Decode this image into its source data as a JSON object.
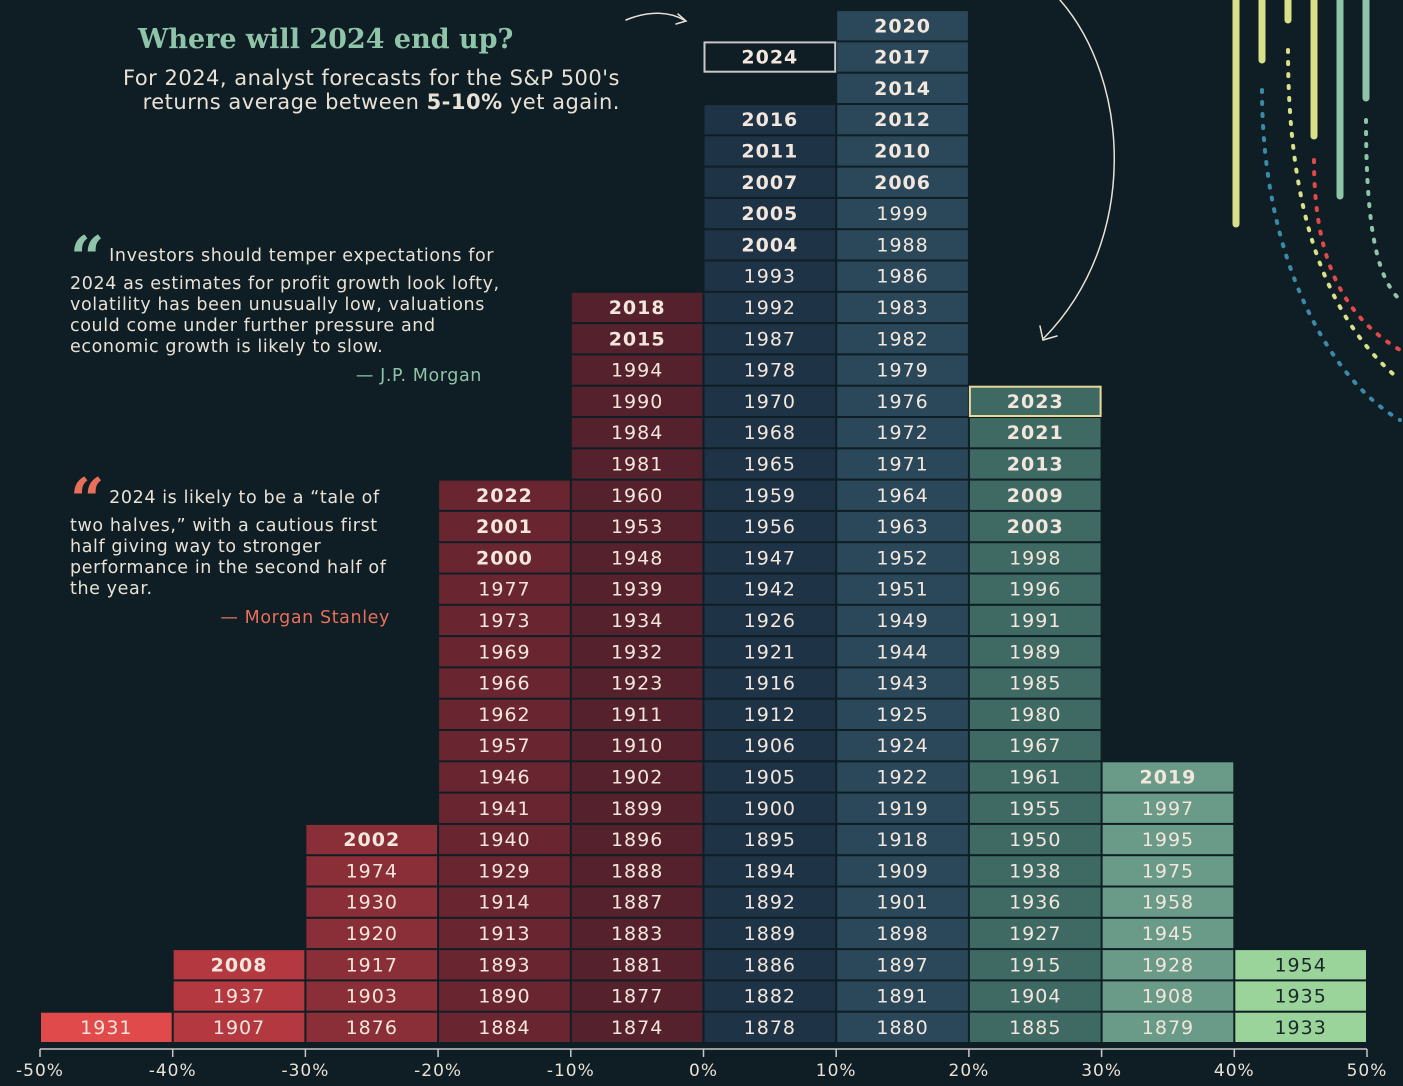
{
  "header": {
    "title": "Where will 2024 end up?",
    "subtitle_before": "For 2024, analyst forecasts for the S&P 500's returns average between",
    "subtitle_bold": "5-10%",
    "subtitle_after": "yet again."
  },
  "quotes": [
    {
      "text": "Investors should temper expectations for 2024 as estimates for profit growth look lofty, volatility has been unusually low, valuations could come under further pressure and economic growth is likely to slow.",
      "source": "— J.P. Morgan",
      "color": "#8fc4a8"
    },
    {
      "text": "2024 is likely to be a “tale of two halves,” with a cautious first half giving way to stronger performance in the second half of the year.",
      "source": "— Morgan Stanley",
      "color": "#e8705a"
    }
  ],
  "chart_data": {
    "type": "histogram",
    "bins": [
      -50,
      -40,
      -30,
      -20,
      -10,
      0,
      10,
      20,
      30,
      40,
      50
    ],
    "xlim": [
      -50,
      50
    ],
    "xticks": [
      {
        "value": -50,
        "label": "-50%"
      },
      {
        "value": -40,
        "label": "-40%"
      },
      {
        "value": -30,
        "label": "-30%"
      },
      {
        "value": -20,
        "label": "-20%"
      },
      {
        "value": -10,
        "label": "-10%"
      },
      {
        "value": 0,
        "label": "0%"
      },
      {
        "value": 10,
        "label": "10%"
      },
      {
        "value": 20,
        "label": "20%"
      },
      {
        "value": 30,
        "label": "30%"
      },
      {
        "value": 40,
        "label": "40%"
      },
      {
        "value": 50,
        "label": "50%"
      }
    ],
    "columns": [
      {
        "color": "#e04a4a",
        "text_color": "#f3e6dc",
        "years": [
          "1931"
        ],
        "recent": []
      },
      {
        "color": "#b3383f",
        "text_color": "#f3e6dc",
        "years": [
          "1907",
          "1937"
        ],
        "recent": [
          "2008"
        ]
      },
      {
        "color": "#8a2e38",
        "text_color": "#f3e6dc",
        "years": [
          "1876",
          "1903",
          "1917",
          "1920",
          "1930",
          "1974"
        ],
        "recent": [
          "2002"
        ]
      },
      {
        "color": "#6a2630",
        "text_color": "#f3e6dc",
        "years": [
          "1884",
          "1890",
          "1893",
          "1913",
          "1914",
          "1929",
          "1940",
          "1941",
          "1946",
          "1957",
          "1962",
          "1966",
          "1969",
          "1973",
          "1977"
        ],
        "recent": [
          "2000",
          "2001",
          "2022"
        ]
      },
      {
        "color": "#55212c",
        "text_color": "#f3e6dc",
        "years": [
          "1874",
          "1877",
          "1881",
          "1883",
          "1887",
          "1888",
          "1896",
          "1899",
          "1902",
          "1910",
          "1911",
          "1923",
          "1932",
          "1934",
          "1939",
          "1948",
          "1953",
          "1960",
          "1981",
          "1984",
          "1990",
          "1994"
        ],
        "recent": [
          "2015",
          "2018"
        ]
      },
      {
        "color": "#1e3346",
        "text_color": "#f3e6dc",
        "years": [
          "1878",
          "1882",
          "1886",
          "1889",
          "1892",
          "1894",
          "1895",
          "1900",
          "1905",
          "1906",
          "1912",
          "1916",
          "1921",
          "1926",
          "1942",
          "1947",
          "1956",
          "1959",
          "1965",
          "1968",
          "1970",
          "1978",
          "1987",
          "1992",
          "1993"
        ],
        "recent": [
          "2004",
          "2005",
          "2007",
          "2011",
          "2016"
        ],
        "forecast": "2024"
      },
      {
        "color": "#2a4859",
        "text_color": "#f3e6dc",
        "years": [
          "1880",
          "1891",
          "1897",
          "1898",
          "1901",
          "1909",
          "1918",
          "1919",
          "1922",
          "1924",
          "1925",
          "1943",
          "1944",
          "1949",
          "1951",
          "1952",
          "1963",
          "1964",
          "1971",
          "1972",
          "1976",
          "1979",
          "1982",
          "1983",
          "1986",
          "1988",
          "1999"
        ],
        "recent": [
          "2006",
          "2010",
          "2012",
          "2014",
          "2017",
          "2020"
        ]
      },
      {
        "color": "#3e6a63",
        "text_color": "#f3e6dc",
        "years": [
          "1885",
          "1904",
          "1915",
          "1927",
          "1936",
          "1938",
          "1950",
          "1955",
          "1961",
          "1967",
          "1980",
          "1985",
          "1989",
          "1991",
          "1996",
          "1998"
        ],
        "recent": [
          "2003",
          "2009",
          "2013",
          "2021"
        ],
        "outlined": "2023"
      },
      {
        "color": "#6a9a88",
        "text_color": "#f3e6dc",
        "years": [
          "1879",
          "1908",
          "1928",
          "1945",
          "1958",
          "1975",
          "1995",
          "1997"
        ],
        "recent": [
          "2019"
        ]
      },
      {
        "color": "#9bd49a",
        "text_color": "#1a2a2a",
        "years": [
          "1933",
          "1935",
          "1954"
        ],
        "recent": []
      }
    ]
  }
}
